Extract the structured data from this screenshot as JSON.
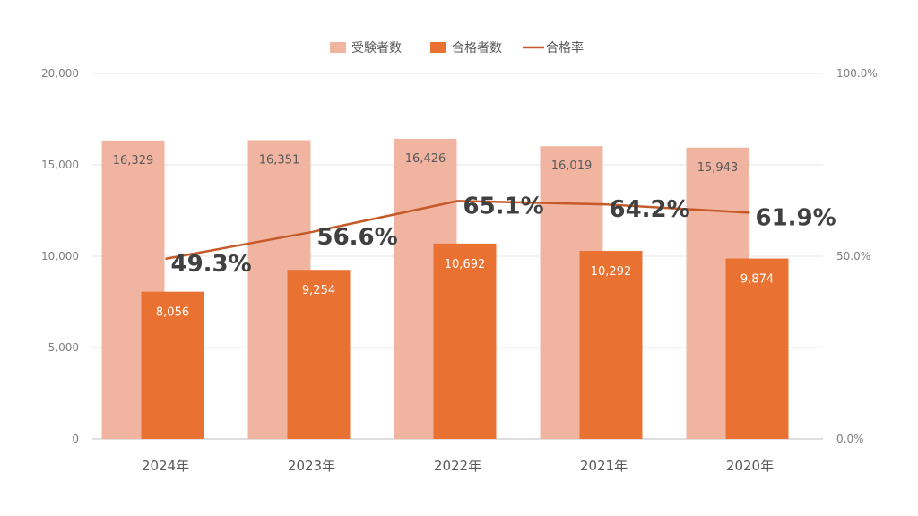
{
  "chart_data": {
    "type": "bar",
    "categories": [
      "2024年",
      "2023年",
      "2022年",
      "2021年",
      "2020年"
    ],
    "series": [
      {
        "name": "受験者数",
        "type": "bar",
        "axis": "left",
        "color": "#f0b4a0",
        "values": [
          16329,
          16351,
          16426,
          16019,
          15943
        ],
        "labels": [
          "16,329",
          "16,351",
          "16,426",
          "16,019",
          "15,943"
        ]
      },
      {
        "name": "合格者数",
        "type": "bar",
        "axis": "left",
        "color": "#e97132",
        "values": [
          8056,
          9254,
          10692,
          10292,
          9874
        ],
        "labels": [
          "8,056",
          "9,254",
          "10,692",
          "10,292",
          "9,874"
        ]
      },
      {
        "name": "合格率",
        "type": "line",
        "axis": "right",
        "color": "#c55a28",
        "values": [
          49.3,
          56.6,
          65.1,
          64.2,
          61.9
        ],
        "labels": [
          "49.3%",
          "56.6%",
          "65.1%",
          "64.2%",
          "61.9%"
        ]
      }
    ],
    "y_left": {
      "range": [
        0,
        20000
      ],
      "ticks": [
        "0",
        "5,000",
        "10,000",
        "15,000",
        "20,000"
      ]
    },
    "y_right": {
      "range": [
        0,
        100
      ],
      "ticks": [
        "0.0%",
        "50.0%",
        "100.0%"
      ]
    },
    "legend_position": "top",
    "grid": true
  }
}
